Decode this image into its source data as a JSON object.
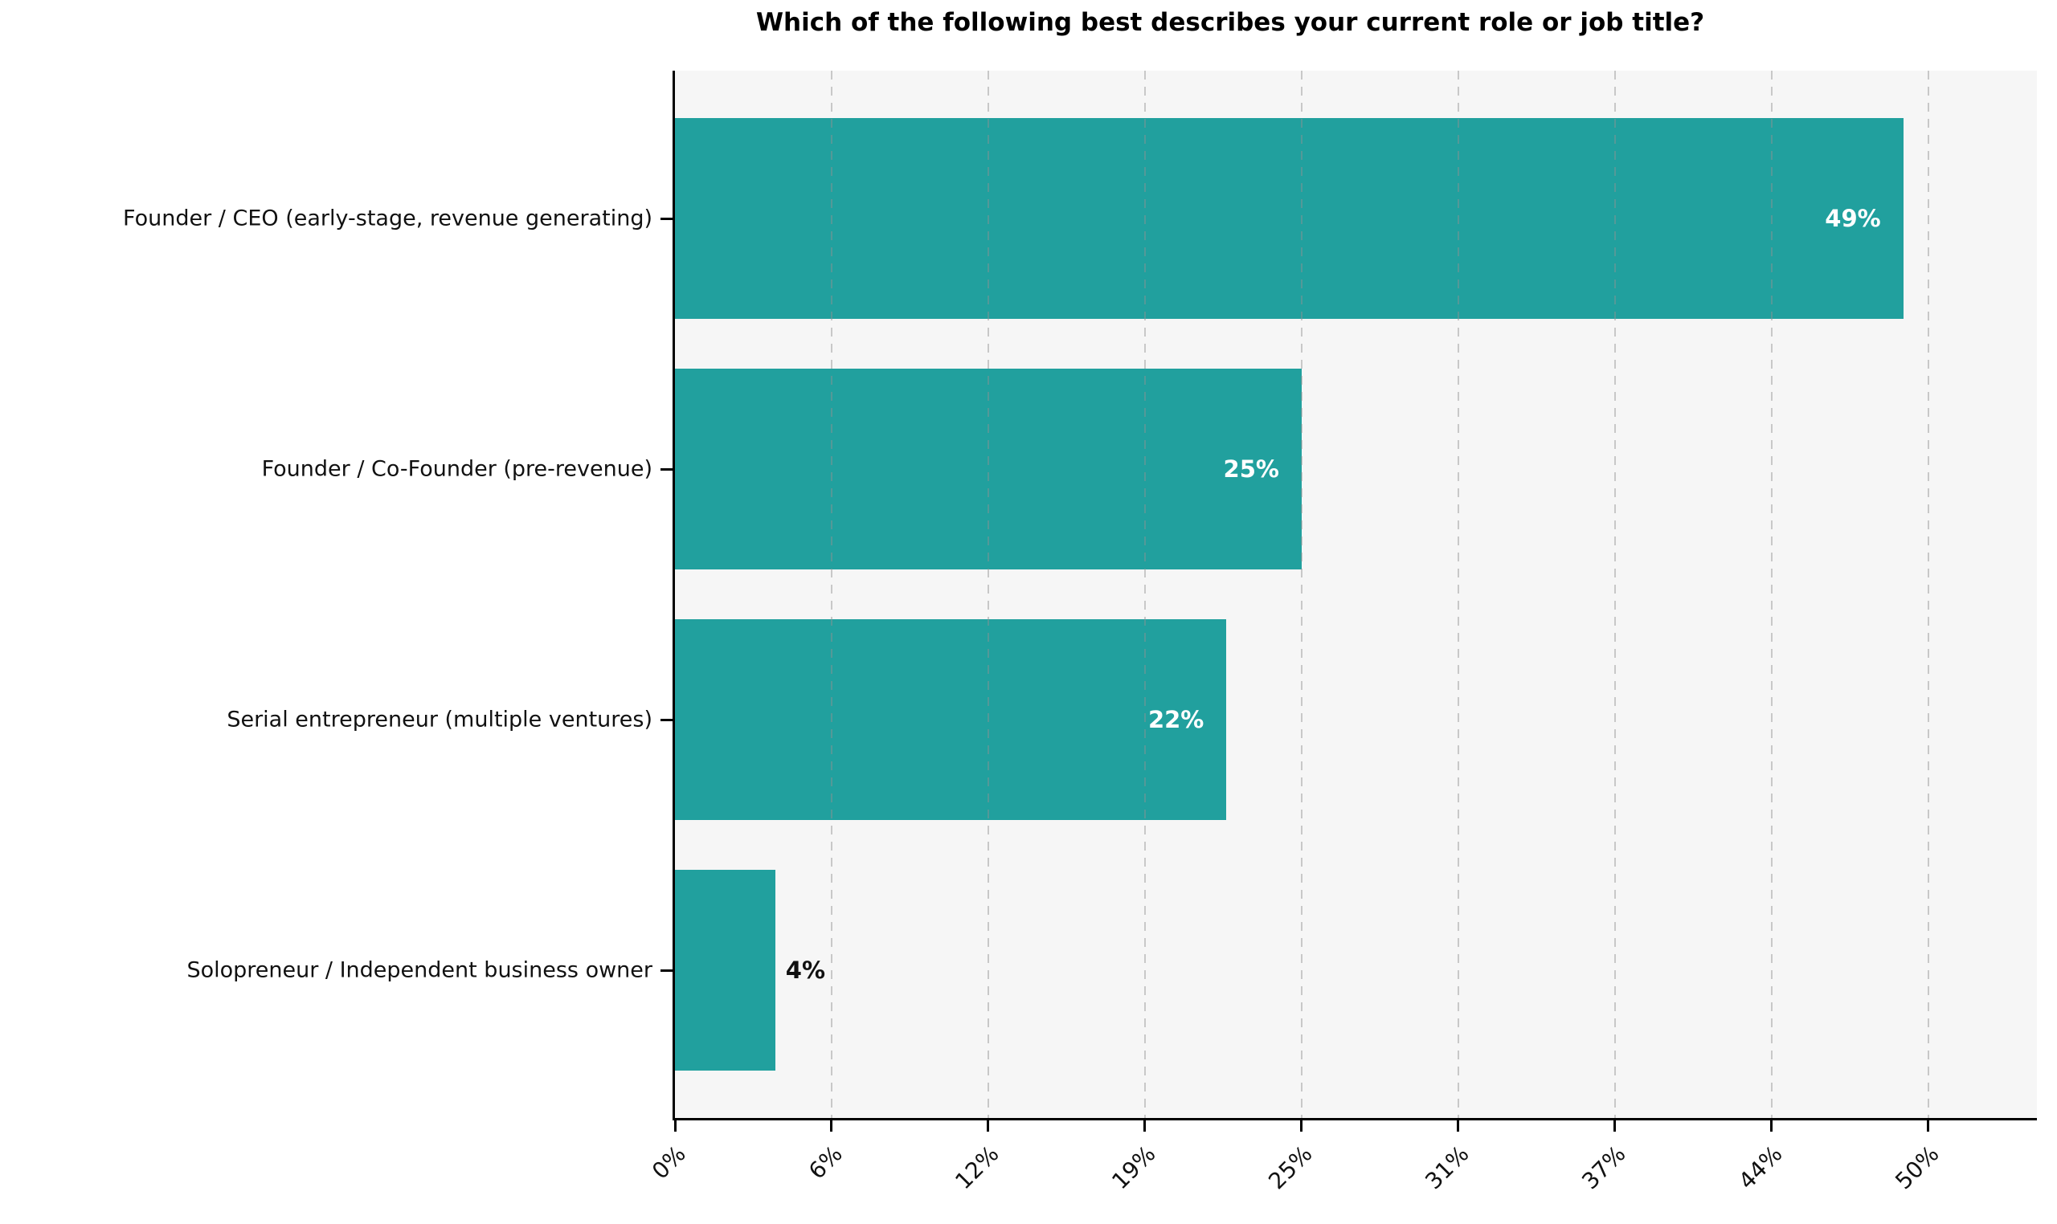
{
  "chart_data": {
    "type": "bar",
    "orientation": "horizontal",
    "title": "Which of the following best describes your current role or job title?",
    "categories": [
      "Founder / CEO (early-stage, revenue generating)",
      "Founder / Co-Founder (pre-revenue)",
      "Serial entrepreneur (multiple ventures)",
      "Solopreneur / Independent business owner"
    ],
    "values": [
      49,
      25,
      22,
      4
    ],
    "value_labels": [
      "49%",
      "25%",
      "22%",
      "4%"
    ],
    "xlabel": "",
    "ylabel": "",
    "xlim": [
      0,
      54.33
    ],
    "xticks": {
      "values": [
        0,
        6.25,
        12.5,
        18.75,
        25,
        31.25,
        37.5,
        43.75,
        50
      ],
      "labels": [
        "0%",
        "6%",
        "12%",
        "19%",
        "25%",
        "31%",
        "37%",
        "44%",
        "50%"
      ]
    },
    "grid": {
      "axis": "x",
      "style": "dashed",
      "on": true
    },
    "legend": "none",
    "colors": {
      "bar": "#21a09e",
      "plot_background": "#f6f6f6",
      "figure_background": "#ffffff",
      "grid": "#919191",
      "axis_spine": "#000000",
      "value_label_inside": "#ffffff",
      "value_label_outside": "#111111",
      "tick_label": "#111111",
      "title": "#000000"
    }
  }
}
